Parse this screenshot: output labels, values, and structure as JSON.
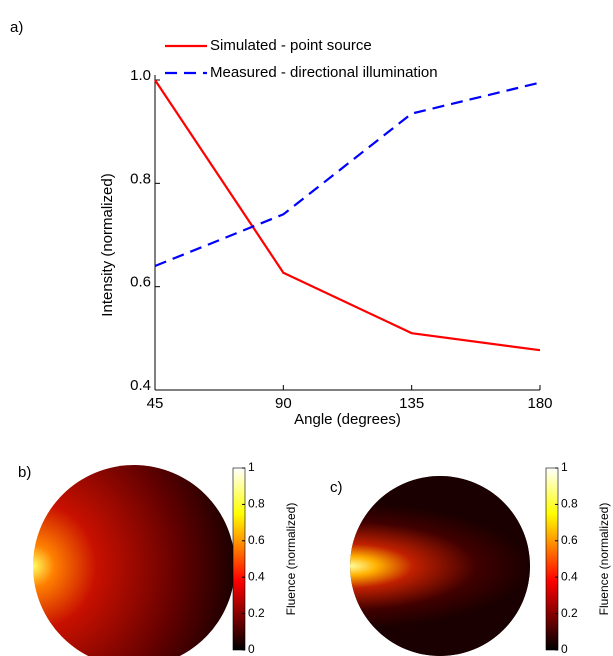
{
  "chart_data": [
    {
      "type": "line",
      "panel_label": "a)",
      "x_label": "Angle (degrees)",
      "y_label": "Intensity (normalized)",
      "x": [
        45,
        90,
        135,
        180
      ],
      "series": [
        {
          "name": "Simulated - point source",
          "color": "#ff0000",
          "dash": "solid",
          "values": [
            1.0,
            0.627,
            0.51,
            0.477
          ]
        },
        {
          "name": "Measured - directional illumination",
          "color": "#0000ff",
          "dash": "dashed",
          "values": [
            0.64,
            0.74,
            0.935,
            0.995
          ]
        }
      ],
      "xlim": [
        45,
        180
      ],
      "xticks": [
        45,
        90,
        135,
        180
      ],
      "ylim": [
        0.4,
        1.0
      ],
      "yticks": [
        0.4,
        0.6,
        0.8,
        {
          "value": 1.0,
          "label": "1.0"
        }
      ]
    },
    {
      "type": "colorbar",
      "panel_label": "b)",
      "label": "Fluence (normalized)",
      "ylim": [
        0,
        1
      ],
      "yticks": [
        0,
        0.2,
        0.4,
        0.6,
        0.8,
        1
      ]
    },
    {
      "type": "colorbar",
      "panel_label": "c)",
      "label": "Fluence (normalized)",
      "ylim": [
        0,
        1
      ],
      "yticks": [
        0,
        0.2,
        0.4,
        0.6,
        0.8,
        1
      ]
    }
  ]
}
